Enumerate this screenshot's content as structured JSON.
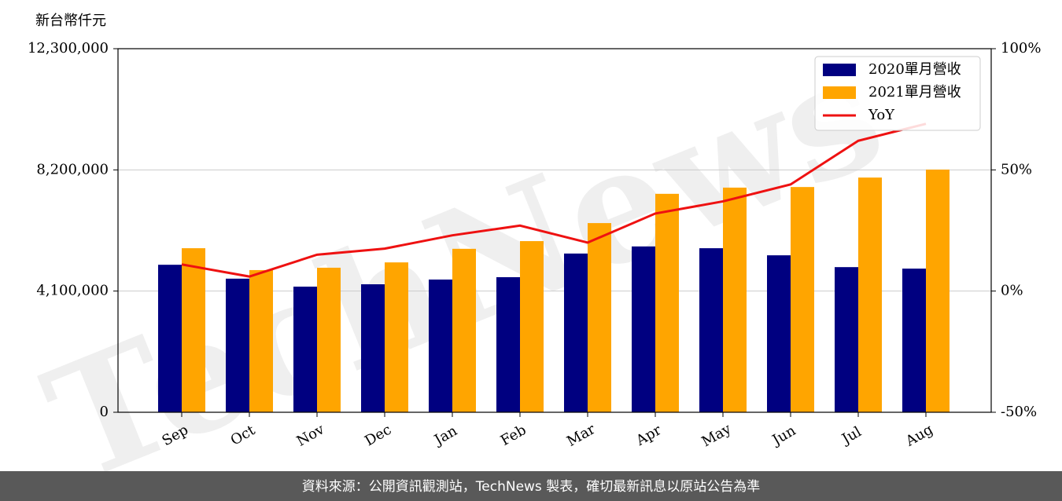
{
  "chart_data": {
    "type": "bar",
    "y_label": "新台幣仟元",
    "watermark": "TechNews",
    "categories": [
      "Sep",
      "Oct",
      "Nov",
      "Dec",
      "Jan",
      "Feb",
      "Mar",
      "Apr",
      "May",
      "Jun",
      "Jul",
      "Aug"
    ],
    "series": [
      {
        "name": "2020單月營收",
        "color": "#000080",
        "values": [
          4990000,
          4520000,
          4250000,
          4330000,
          4490000,
          4570000,
          5370000,
          5610000,
          5550000,
          5310000,
          4910000,
          4860000
        ]
      },
      {
        "name": "2021單月營收",
        "color": "#ffa500",
        "values": [
          5550000,
          4810000,
          4890000,
          5070000,
          5530000,
          5790000,
          6400000,
          7390000,
          7600000,
          7620000,
          7940000,
          8210000
        ]
      },
      {
        "name": "YoY",
        "color": "#ee1111",
        "type": "line",
        "axis": "y2",
        "values": [
          11,
          6,
          15,
          17.5,
          23,
          27,
          20,
          32,
          37,
          44,
          62,
          69
        ]
      }
    ],
    "ylim": [
      0,
      12300000
    ],
    "yticks": [
      0,
      {
        "value": 4100000,
        "label": "4,100,000"
      },
      {
        "value": 8200000,
        "label": "8,200,000"
      },
      {
        "value": 12300000,
        "label": "12,300,000"
      }
    ],
    "y2lim": [
      -50,
      100
    ],
    "y2ticks": [
      {
        "value": -50,
        "label": "-50%"
      },
      {
        "value": 0,
        "label": "0%"
      },
      {
        "value": 50,
        "label": "50%"
      },
      {
        "value": 100,
        "label": "100%"
      }
    ],
    "grid": true,
    "legend": "upper right",
    "footer": "資料來源：公開資訊觀測站，TechNews 製表，確切最新訊息以原站公告為準"
  }
}
